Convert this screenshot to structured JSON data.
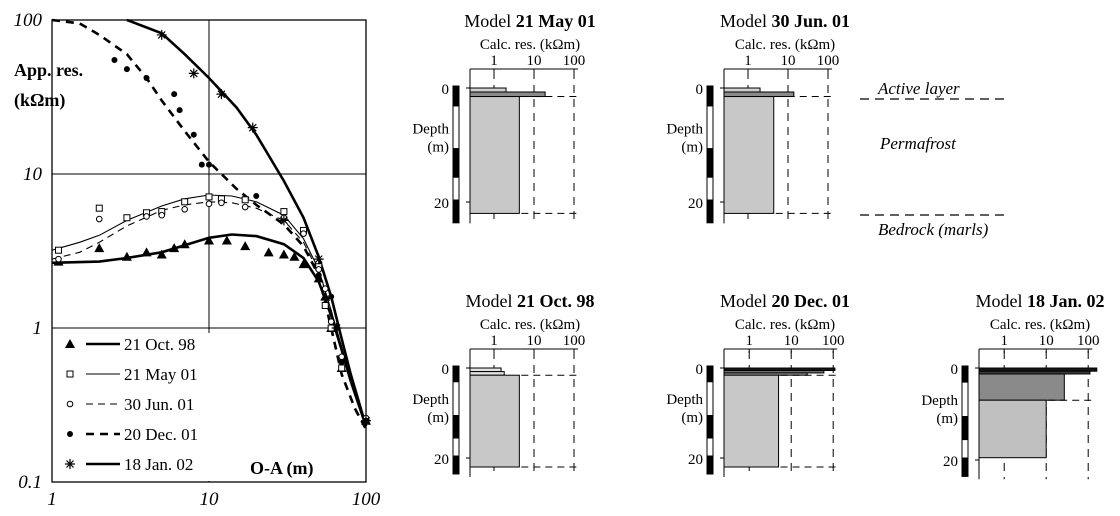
{
  "chart_data": [
    {
      "type": "scatter",
      "scale": {
        "x": "log",
        "y": "log"
      },
      "xlim": [
        1,
        100
      ],
      "ylim": [
        0.1,
        100
      ],
      "x_ticks": [
        "1",
        "10",
        "100"
      ],
      "y_ticks": [
        "0.1",
        "1",
        "10",
        "100"
      ],
      "xlabel": "O-A (m)",
      "ylabel_line1": "App. res.",
      "ylabel_line2": "(kΩm)",
      "grid": "major decades",
      "legend_position": "bottom-left",
      "series": [
        {
          "name": "21 Oct. 98",
          "marker": "filled-triangle",
          "line": "thick-solid",
          "points": [
            [
              1.1,
              2.7
            ],
            [
              2,
              3.3
            ],
            [
              3,
              2.9
            ],
            [
              4,
              3.1
            ],
            [
              5,
              3.0
            ],
            [
              6,
              3.3
            ],
            [
              7,
              3.5
            ],
            [
              10,
              3.7
            ],
            [
              13,
              3.7
            ],
            [
              17,
              3.4
            ],
            [
              24,
              3.1
            ],
            [
              30,
              3.0
            ],
            [
              35,
              2.9
            ],
            [
              40,
              2.6
            ],
            [
              50,
              2.1
            ],
            [
              55,
              1.6
            ],
            [
              60,
              1.0
            ],
            [
              70,
              0.55
            ],
            [
              100,
              0.25
            ]
          ],
          "curve": [
            [
              1,
              2.65
            ],
            [
              2,
              2.7
            ],
            [
              3,
              2.85
            ],
            [
              5,
              3.1
            ],
            [
              7,
              3.45
            ],
            [
              10,
              3.85
            ],
            [
              14,
              4.05
            ],
            [
              20,
              3.95
            ],
            [
              30,
              3.5
            ],
            [
              40,
              2.85
            ],
            [
              50,
              2.0
            ],
            [
              60,
              1.2
            ],
            [
              70,
              0.72
            ],
            [
              80,
              0.45
            ],
            [
              100,
              0.23
            ]
          ]
        },
        {
          "name": "21 May 01",
          "marker": "open-square",
          "line": "thin-solid",
          "points": [
            [
              1.1,
              3.2
            ],
            [
              2,
              6.0
            ],
            [
              3,
              5.2
            ],
            [
              4,
              5.6
            ],
            [
              5,
              5.7
            ],
            [
              7,
              6.6
            ],
            [
              10,
              7.1
            ],
            [
              12,
              6.9
            ],
            [
              17,
              6.8
            ],
            [
              30,
              5.7
            ],
            [
              40,
              4.3
            ],
            [
              50,
              2.5
            ],
            [
              55,
              1.4
            ],
            [
              60,
              1.0
            ],
            [
              70,
              0.55
            ],
            [
              100,
              0.25
            ]
          ],
          "curve": [
            [
              1,
              3.2
            ],
            [
              1.5,
              3.6
            ],
            [
              2,
              4.0
            ],
            [
              3,
              5.0
            ],
            [
              5,
              6.2
            ],
            [
              7,
              6.9
            ],
            [
              10,
              7.3
            ],
            [
              14,
              7.2
            ],
            [
              20,
              6.6
            ],
            [
              30,
              5.4
            ],
            [
              40,
              3.8
            ],
            [
              50,
              2.4
            ],
            [
              60,
              1.3
            ],
            [
              70,
              0.75
            ],
            [
              80,
              0.45
            ],
            [
              100,
              0.24
            ]
          ]
        },
        {
          "name": "30 Jun. 01",
          "marker": "open-circle",
          "line": "thin-dashed",
          "points": [
            [
              1.1,
              2.8
            ],
            [
              2,
              5.1
            ],
            [
              4,
              5.3
            ],
            [
              5,
              5.4
            ],
            [
              7,
              5.9
            ],
            [
              10,
              6.4
            ],
            [
              12,
              6.5
            ],
            [
              17,
              6.1
            ],
            [
              30,
              5.2
            ],
            [
              40,
              4.1
            ],
            [
              50,
              2.4
            ],
            [
              55,
              1.8
            ],
            [
              60,
              1.1
            ],
            [
              70,
              0.65
            ],
            [
              100,
              0.26
            ]
          ],
          "curve": [
            [
              1,
              2.8
            ],
            [
              1.5,
              3.1
            ],
            [
              2,
              3.6
            ],
            [
              3,
              4.6
            ],
            [
              5,
              5.8
            ],
            [
              7,
              6.3
            ],
            [
              10,
              6.6
            ],
            [
              14,
              6.5
            ],
            [
              20,
              6.0
            ],
            [
              30,
              5.0
            ],
            [
              40,
              3.6
            ],
            [
              50,
              2.3
            ],
            [
              60,
              1.3
            ],
            [
              70,
              0.75
            ],
            [
              80,
              0.45
            ],
            [
              100,
              0.24
            ]
          ]
        },
        {
          "name": "20 Dec. 01",
          "marker": "filled-circle",
          "line": "thick-dashed",
          "points": [
            [
              2.5,
              55
            ],
            [
              3,
              48
            ],
            [
              4,
              42
            ],
            [
              6,
              33
            ],
            [
              6.5,
              26
            ],
            [
              8,
              18
            ],
            [
              9,
              11.5
            ],
            [
              10,
              11.5
            ],
            [
              20,
              7.2
            ],
            [
              50,
              2.2
            ],
            [
              60,
              1.6
            ],
            [
              65,
              1.0
            ],
            [
              70,
              0.6
            ],
            [
              100,
              0.25
            ]
          ],
          "curve": [
            [
              1,
              105
            ],
            [
              1.5,
              95
            ],
            [
              2,
              80
            ],
            [
              3,
              60
            ],
            [
              4,
              42
            ],
            [
              5,
              30
            ],
            [
              7,
              19
            ],
            [
              10,
              12
            ],
            [
              15,
              8
            ],
            [
              20,
              6.3
            ],
            [
              30,
              4.7
            ],
            [
              40,
              3.4
            ],
            [
              50,
              2.2
            ],
            [
              60,
              1.0
            ],
            [
              70,
              0.5
            ],
            [
              85,
              0.3
            ],
            [
              100,
              0.22
            ]
          ]
        },
        {
          "name": "18 Jan. 02",
          "marker": "asterisk",
          "line": "thick-solid",
          "points": [
            [
              5,
              80
            ],
            [
              8,
              45
            ],
            [
              12,
              33
            ],
            [
              19,
              20
            ],
            [
              30,
              5.0
            ],
            [
              50,
              2.8
            ],
            [
              65,
              1.0
            ],
            [
              100,
              0.25
            ]
          ],
          "curve": [
            [
              3,
              110
            ],
            [
              5,
              82
            ],
            [
              7,
              60
            ],
            [
              10,
              42
            ],
            [
              15,
              27
            ],
            [
              20,
              18
            ],
            [
              30,
              9
            ],
            [
              40,
              5.2
            ],
            [
              50,
              2.9
            ],
            [
              60,
              1.6
            ],
            [
              70,
              0.85
            ],
            [
              80,
              0.5
            ],
            [
              100,
              0.23
            ]
          ]
        }
      ]
    },
    {
      "type": "bar",
      "orientation": "horizontal",
      "scale": {
        "x": "log"
      },
      "title_prefix": "Model ",
      "title_bold": "21 May 01",
      "subtitle": "Calc. res. (kΩm)",
      "x_ticks": [
        "1",
        "10",
        "100"
      ],
      "y_ticks": [
        "0",
        "20"
      ],
      "ylabel_line1": "Depth",
      "ylabel_line2": "(m)",
      "layers": [
        {
          "top": 0,
          "bottom": 0.7,
          "value": 2.0,
          "shade": "#d0d0d0"
        },
        {
          "top": 0.7,
          "bottom": 1.5,
          "value": 19,
          "shade": "#8a8a8a"
        },
        {
          "top": 1.5,
          "bottom": 22,
          "value": 4.3,
          "shade": "#c8c8c8"
        }
      ]
    },
    {
      "type": "bar",
      "orientation": "horizontal",
      "scale": {
        "x": "log"
      },
      "title_prefix": "Model ",
      "title_bold": "30 Jun. 01",
      "subtitle": "Calc. res. (kΩm)",
      "x_ticks": [
        "1",
        "10",
        "100"
      ],
      "y_ticks": [
        "0",
        "20"
      ],
      "ylabel_line1": "Depth",
      "ylabel_line2": "(m)",
      "layers": [
        {
          "top": 0,
          "bottom": 0.7,
          "value": 2.0,
          "shade": "#d0d0d0"
        },
        {
          "top": 0.7,
          "bottom": 1.5,
          "value": 14,
          "shade": "#8a8a8a"
        },
        {
          "top": 1.5,
          "bottom": 22,
          "value": 4.4,
          "shade": "#c8c8c8"
        }
      ]
    },
    {
      "type": "bar",
      "orientation": "horizontal",
      "scale": {
        "x": "log"
      },
      "title_prefix": "Model ",
      "title_bold": "21 Oct. 98",
      "subtitle": "Calc. res. (kΩm)",
      "x_ticks": [
        "1",
        "10",
        "100"
      ],
      "y_ticks": [
        "0",
        "20"
      ],
      "ylabel_line1": "Depth",
      "ylabel_line2": "(m)",
      "layers": [
        {
          "top": 0,
          "bottom": 0.8,
          "value": 1.5,
          "shade": "#e2e2e2"
        },
        {
          "top": 0.8,
          "bottom": 1.6,
          "value": 1.8,
          "shade": "#e2e2e2"
        },
        {
          "top": 1.6,
          "bottom": 22,
          "value": 4.3,
          "shade": "#c8c8c8"
        }
      ]
    },
    {
      "type": "bar",
      "orientation": "horizontal",
      "scale": {
        "x": "log"
      },
      "title_prefix": "Model ",
      "title_bold": "20 Dec. 01",
      "subtitle": "Calc. res. (kΩm)",
      "x_ticks": [
        "1",
        "10",
        "100"
      ],
      "y_ticks": [
        "0",
        "20"
      ],
      "ylabel_line1": "Depth",
      "ylabel_line2": "(m)",
      "layers": [
        {
          "top": 0,
          "bottom": 0.55,
          "value": 110,
          "shade": "#151515"
        },
        {
          "top": 0.55,
          "bottom": 1.1,
          "value": 60,
          "shade": "#6e6e6e"
        },
        {
          "top": 1.1,
          "bottom": 1.6,
          "value": 24,
          "shade": "#9a9a9a"
        },
        {
          "top": 1.6,
          "bottom": 22,
          "value": 5.0,
          "shade": "#c8c8c8"
        }
      ]
    },
    {
      "type": "bar",
      "orientation": "horizontal",
      "scale": {
        "x": "log"
      },
      "title_prefix": "Model ",
      "title_bold": "18 Jan. 02",
      "subtitle": "Calc. res. (kΩm)",
      "x_ticks": [
        "1",
        "10",
        "100"
      ],
      "y_ticks": [
        "0",
        "20"
      ],
      "ylabel_line1": "Depth",
      "ylabel_line2": "(m)",
      "layers": [
        {
          "top": 0,
          "bottom": 0.7,
          "value": 160,
          "shade": "#151515"
        },
        {
          "top": 0.7,
          "bottom": 1.3,
          "value": 110,
          "shade": "#3a3a3a"
        },
        {
          "top": 1.3,
          "bottom": 7,
          "value": 27,
          "shade": "#8a8a8a"
        },
        {
          "top": 7,
          "bottom": 19.5,
          "value": 10,
          "shade": "#c0c0c0"
        }
      ]
    }
  ],
  "annotations": {
    "active_layer": "Active layer",
    "permafrost": "Permafrost",
    "bedrock": "Bedrock (marls)"
  }
}
